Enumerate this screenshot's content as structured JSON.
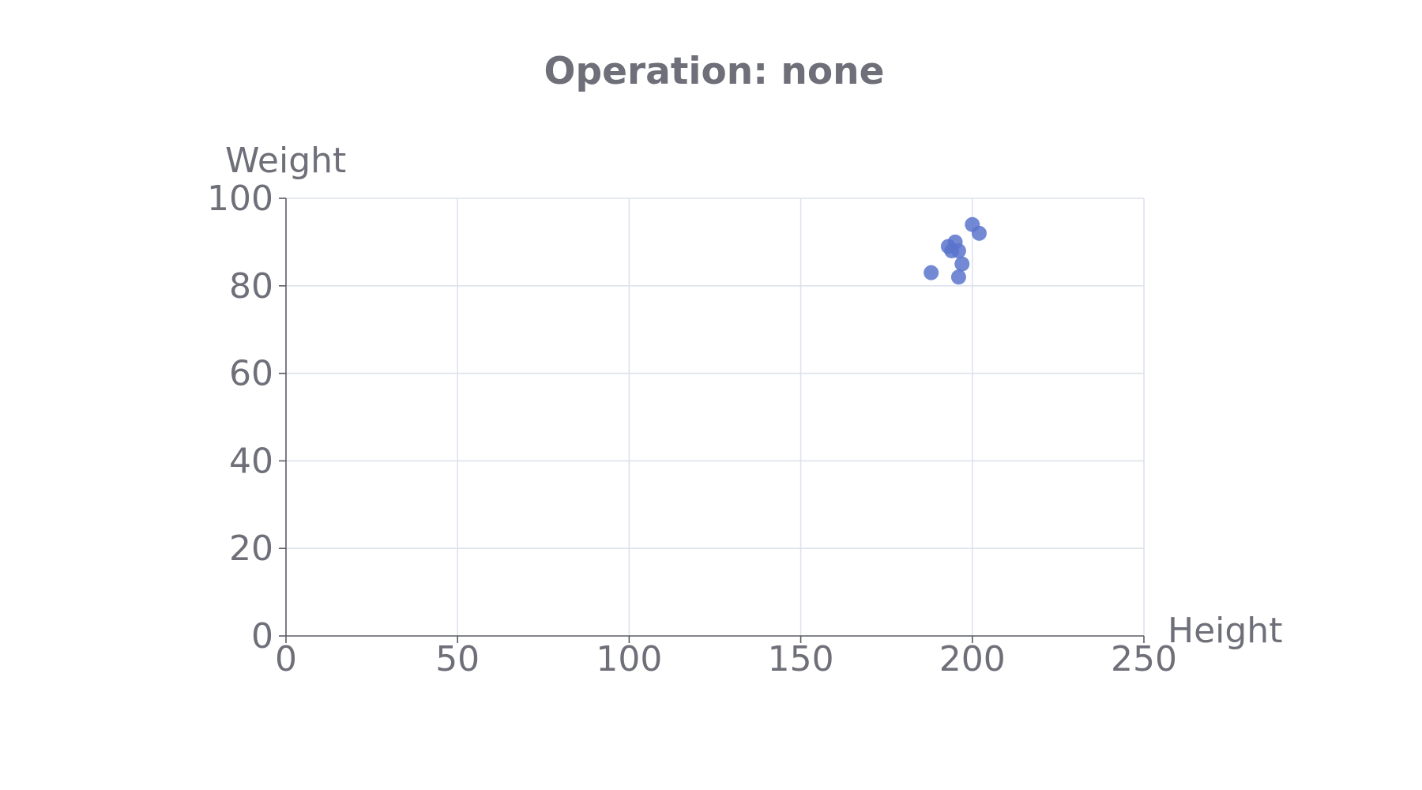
{
  "chart_data": {
    "type": "scatter",
    "title": "Operation: none",
    "xlabel": "Height",
    "ylabel": "Weight",
    "xlim": [
      0,
      250
    ],
    "ylim": [
      0,
      100
    ],
    "xticks": [
      0,
      50,
      100,
      150,
      200,
      250
    ],
    "yticks": [
      0,
      20,
      40,
      60,
      80,
      100
    ],
    "xtick_labels": [
      "0",
      "50",
      "100",
      "150",
      "200",
      "250"
    ],
    "ytick_labels": [
      "0",
      "20",
      "40",
      "60",
      "80",
      "100"
    ],
    "grid": true,
    "point_color": "#5a74cc",
    "points": [
      {
        "x": 188,
        "y": 83
      },
      {
        "x": 193,
        "y": 89
      },
      {
        "x": 194,
        "y": 88
      },
      {
        "x": 195,
        "y": 90
      },
      {
        "x": 196,
        "y": 88
      },
      {
        "x": 196,
        "y": 82
      },
      {
        "x": 197,
        "y": 85
      },
      {
        "x": 200,
        "y": 94
      },
      {
        "x": 202,
        "y": 92
      }
    ]
  }
}
